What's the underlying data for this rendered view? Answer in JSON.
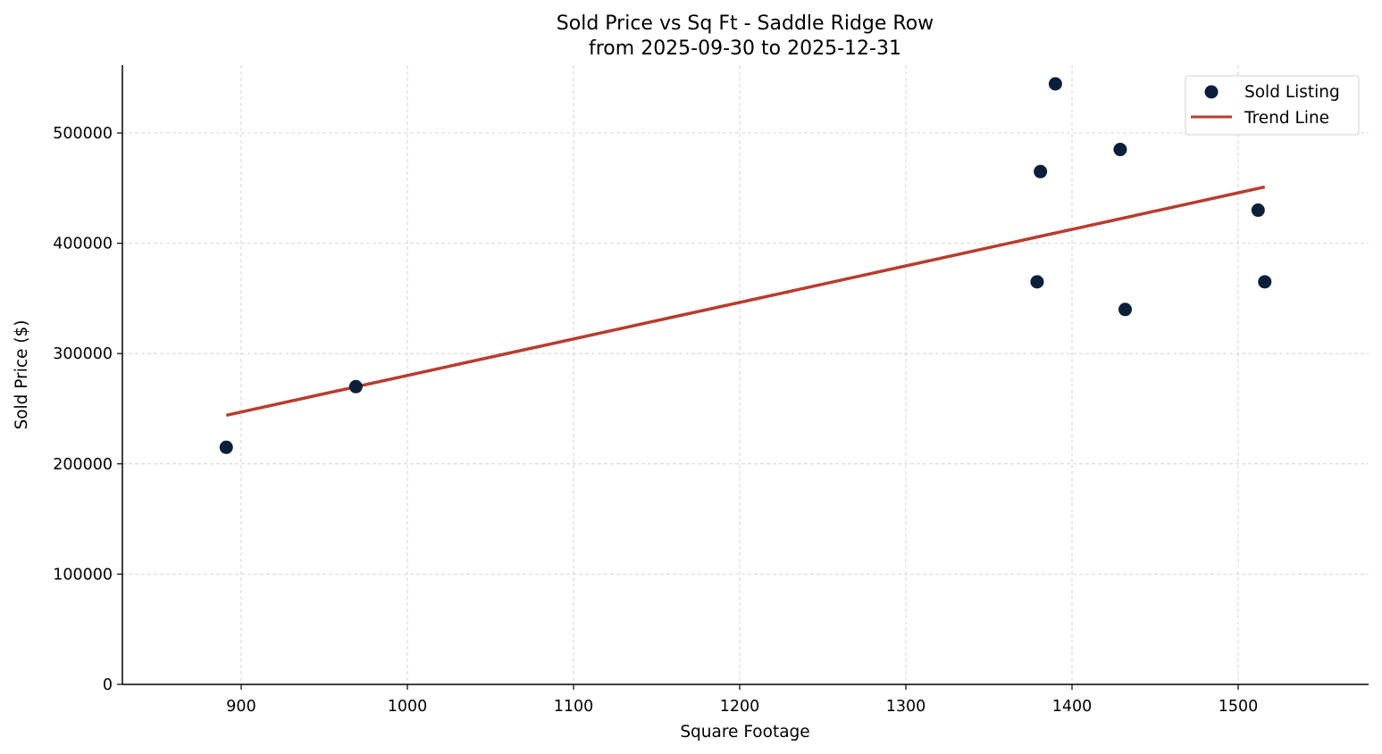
{
  "chart_data": {
    "type": "scatter",
    "title": "Sold Price vs Sq Ft - Saddle Ridge Row",
    "subtitle": "from 2025-09-30 to 2025-12-31",
    "xlabel": "Square Footage",
    "ylabel": "Sold Price ($)",
    "xlim": [
      828,
      1580
    ],
    "ylim": [
      0,
      560000
    ],
    "xticks": [
      900,
      1000,
      1100,
      1200,
      1300,
      1400,
      1500
    ],
    "yticks": [
      0,
      100000,
      200000,
      300000,
      400000,
      500000
    ],
    "grid": true,
    "legend_position": "upper right",
    "series": [
      {
        "name": "Sold Listing",
        "kind": "scatter",
        "color": "#0b1f3a",
        "points": [
          {
            "x": 891,
            "y": 215000
          },
          {
            "x": 969,
            "y": 270000
          },
          {
            "x": 1379,
            "y": 365000
          },
          {
            "x": 1381,
            "y": 465000
          },
          {
            "x": 1390,
            "y": 544500
          },
          {
            "x": 1429,
            "y": 485000
          },
          {
            "x": 1432,
            "y": 340000
          },
          {
            "x": 1512,
            "y": 430000
          },
          {
            "x": 1516,
            "y": 365000
          }
        ]
      },
      {
        "name": "Trend Line",
        "kind": "line",
        "color": "#b83c2e",
        "points": [
          {
            "x": 891,
            "y": 244000
          },
          {
            "x": 1516,
            "y": 451000
          }
        ]
      }
    ]
  }
}
